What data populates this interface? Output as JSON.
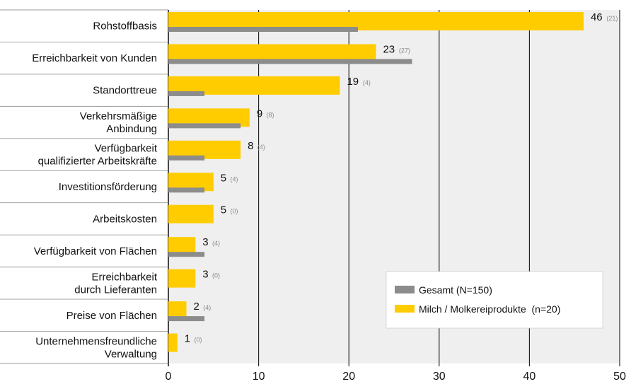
{
  "chart_data": {
    "type": "bar",
    "orientation": "horizontal",
    "categories": [
      [
        "Rohstoffbasis"
      ],
      [
        "Erreichbarkeit von Kunden"
      ],
      [
        "Standorttreue"
      ],
      [
        "Verkehrsmäßige",
        "Anbindung"
      ],
      [
        "Verfügbarkeit",
        "qualifizierter Arbeitskräfte"
      ],
      [
        "Investitionsförderung"
      ],
      [
        "Arbeitskosten"
      ],
      [
        "Verfügbarkeit von Flächen"
      ],
      [
        "Erreichbarkeit",
        "durch Lieferanten"
      ],
      [
        "Preise von Flächen"
      ],
      [
        "Unternehmensfreundliche",
        "Verwaltung"
      ]
    ],
    "series": [
      {
        "name": "Milch / Molkereiprodukte  (n=20)",
        "color": "#FFCC00",
        "values": [
          46,
          23,
          19,
          9,
          8,
          5,
          5,
          3,
          3,
          2,
          1
        ]
      },
      {
        "name": "Gesamt (N=150)",
        "color": "#8C8C8C",
        "values": [
          21,
          27,
          4,
          8,
          4,
          4,
          0,
          4,
          0,
          4,
          0
        ]
      }
    ],
    "data_labels": {
      "main": [
        "46",
        "23",
        "19",
        "9",
        "8",
        "5",
        "5",
        "3",
        "3",
        "2",
        "1"
      ],
      "sub": [
        "(21)",
        "(27)",
        "(4)",
        "(8)",
        "(4)",
        "(4)",
        "(0)",
        "(4)",
        "(0)",
        "(4)",
        "(0)"
      ]
    },
    "x_ticks": [
      "0",
      "10",
      "20",
      "30",
      "40",
      "50"
    ],
    "xlim": [
      0,
      50
    ],
    "grid": true,
    "legend_position": "lower-right"
  }
}
